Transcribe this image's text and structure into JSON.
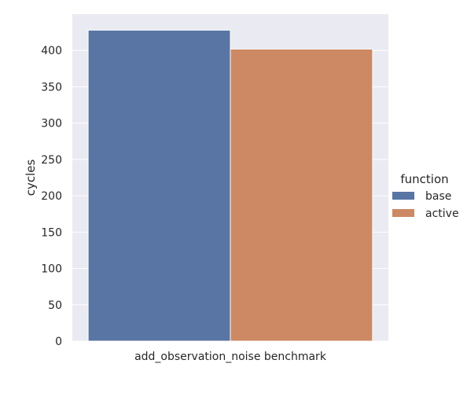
{
  "chart_data": {
    "type": "bar",
    "categories": [
      "add_observation_noise benchmark"
    ],
    "series": [
      {
        "name": "base",
        "values": [
          428
        ],
        "color": "#5875a4"
      },
      {
        "name": "active",
        "values": [
          402
        ],
        "color": "#cc8963"
      }
    ],
    "title": "",
    "xlabel": "",
    "ylabel": "cycles",
    "ylim": [
      0,
      450
    ],
    "yticks": [
      0,
      50,
      100,
      150,
      200,
      250,
      300,
      350,
      400
    ],
    "grid": true,
    "legend": {
      "title": "function",
      "placement": "right",
      "entries": [
        "base",
        "active"
      ]
    },
    "background_color": "#eaeaf2",
    "grid_color": "#ffffff"
  }
}
